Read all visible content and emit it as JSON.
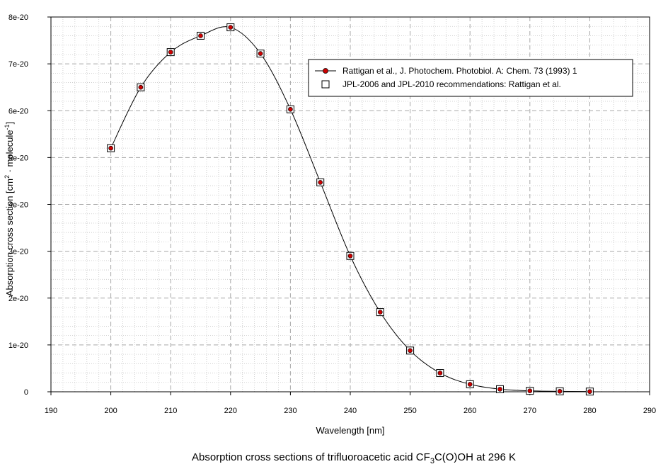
{
  "chart_data": {
    "type": "scatter",
    "xlabel": "Wavelength [nm]",
    "ylabel": {
      "base": "Absorption cross section [cm",
      "sup1": "2",
      "mid": " · molecule",
      "sup2": "-1",
      "end": "]"
    },
    "caption": {
      "pre": "Absorption cross sections of trifluoroacetic acid CF",
      "sub": "3",
      "post": "C(O)OH at 296 K"
    },
    "xlim": [
      190,
      290
    ],
    "ylim": [
      0,
      8e-20
    ],
    "x_ticks": [
      "190",
      "200",
      "210",
      "220",
      "230",
      "240",
      "250",
      "260",
      "270",
      "280",
      "290"
    ],
    "y_ticks": [
      "0",
      "1e-20",
      "2e-20",
      "3e-20",
      "4e-20",
      "5e-20",
      "6e-20",
      "7e-20",
      "8e-20"
    ],
    "grid": true,
    "legend_position": "top-right",
    "series": [
      {
        "name": "Rattigan et al., J. Photochem. Photobiol. A: Chem. 73 (1993) 1",
        "marker": "filled-circle-with-line",
        "color": "#cc0000",
        "x": [
          200,
          205,
          210,
          215,
          220,
          225,
          230,
          235,
          240,
          245,
          250,
          255,
          260,
          265,
          270,
          275,
          280
        ],
        "y": [
          5.2e-20,
          6.5e-20,
          7.25e-20,
          7.6e-20,
          7.78e-20,
          7.22e-20,
          6.03e-20,
          4.47e-20,
          2.9e-20,
          1.7e-20,
          8.8e-21,
          4e-21,
          1.6e-21,
          5.5e-22,
          2e-22,
          1e-22,
          5e-23
        ]
      },
      {
        "name": "JPL-2006 and JPL-2010 recommendations: Rattigan et al.",
        "marker": "open-square",
        "color": "#000000",
        "x": [
          200,
          205,
          210,
          215,
          220,
          225,
          230,
          235,
          240,
          245,
          250,
          255,
          260,
          265,
          270,
          275,
          280
        ],
        "y": [
          5.2e-20,
          6.5e-20,
          7.25e-20,
          7.6e-20,
          7.78e-20,
          7.22e-20,
          6.03e-20,
          4.47e-20,
          2.9e-20,
          1.7e-20,
          8.8e-21,
          4e-21,
          1.6e-21,
          5.5e-22,
          2e-22,
          1e-22,
          5e-23
        ]
      }
    ]
  }
}
